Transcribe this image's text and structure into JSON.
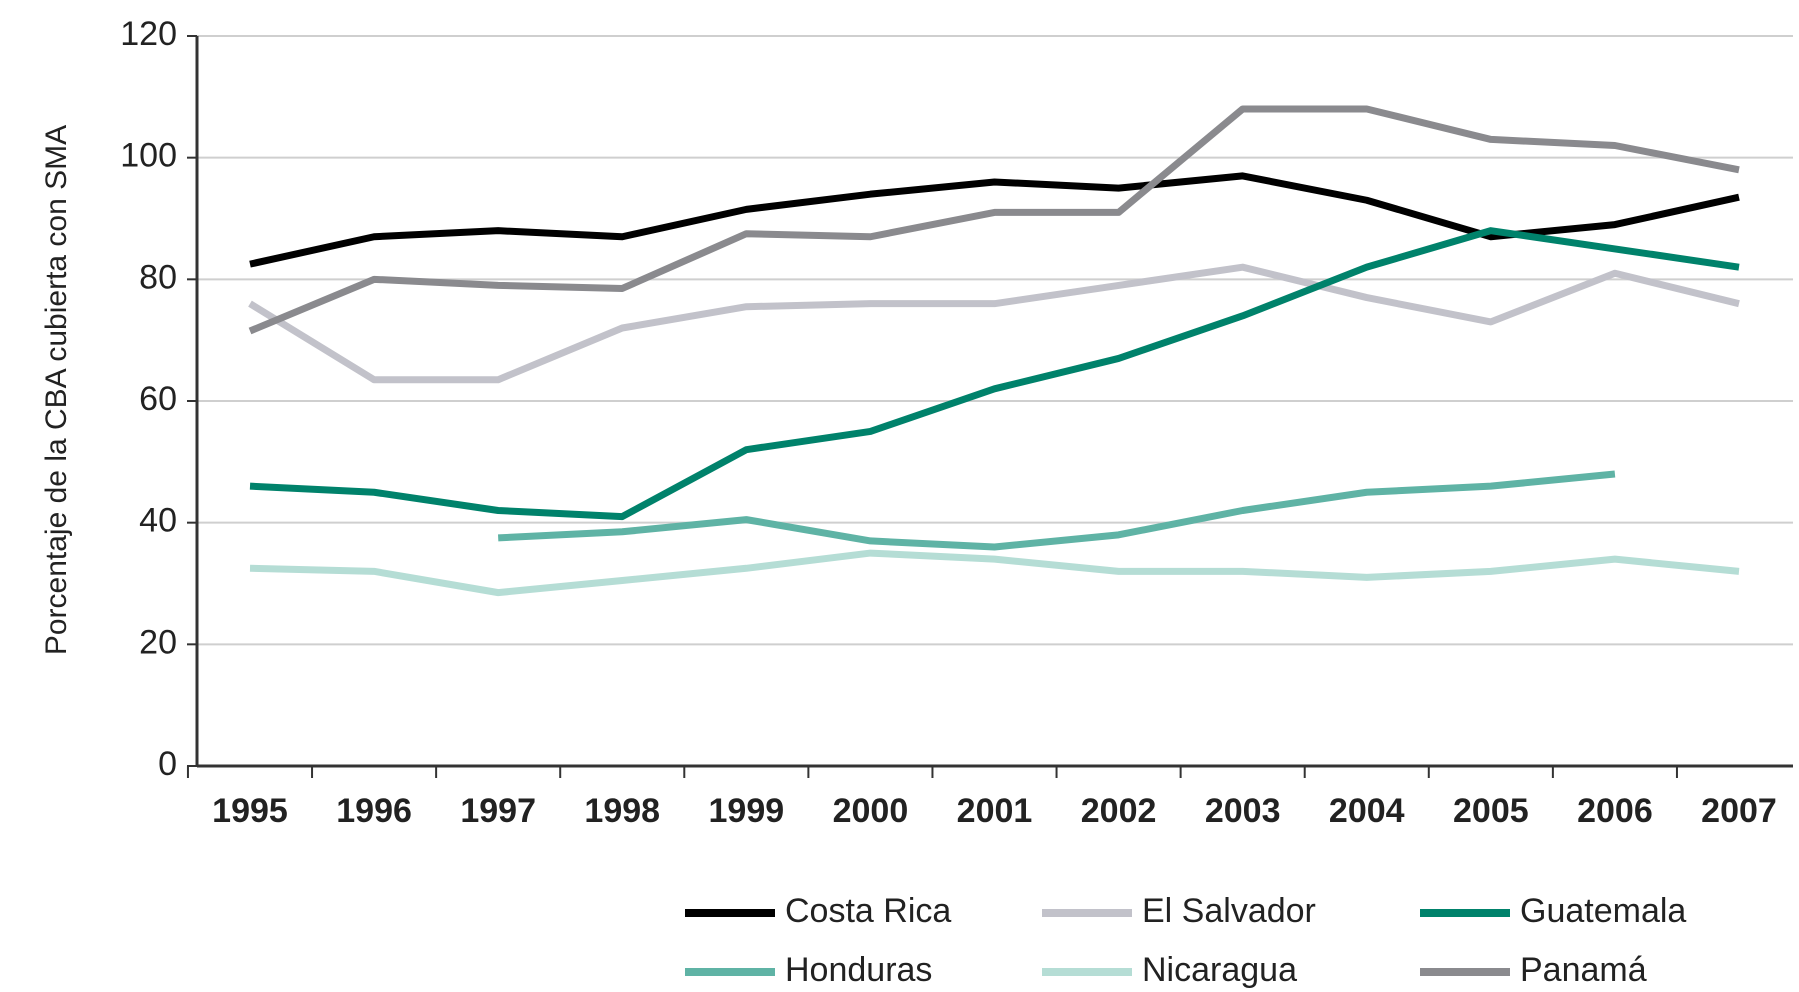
{
  "chart_data": {
    "type": "line",
    "y_label": "Porcentaje de la CBA cubierta con SMA",
    "x": [
      "1995",
      "1996",
      "1997",
      "1998",
      "1999",
      "2000",
      "2001",
      "2002",
      "2003",
      "2004",
      "2005",
      "2006",
      "2007"
    ],
    "ylim": [
      0,
      120
    ],
    "yticks": [
      0,
      20,
      40,
      60,
      80,
      100,
      120
    ],
    "grid": true,
    "series": [
      {
        "name": "Costa Rica",
        "color": "#000000",
        "values": [
          82.5,
          87,
          88,
          87,
          91.5,
          94,
          96,
          95,
          97,
          93,
          87,
          89,
          93.5
        ]
      },
      {
        "name": "El Salvador",
        "color": "#c2c2ca",
        "values": [
          76,
          63.5,
          63.5,
          72,
          75.5,
          76,
          76,
          79,
          82,
          77,
          73,
          81,
          76
        ]
      },
      {
        "name": "Guatemala",
        "color": "#00826b",
        "values": [
          46,
          45,
          42,
          41,
          52,
          55,
          62,
          67,
          74,
          82,
          88,
          85,
          82
        ]
      },
      {
        "name": "Honduras",
        "color": "#5fb3a5",
        "values": [
          null,
          null,
          37.5,
          38.5,
          40.5,
          37,
          36,
          38,
          42,
          45,
          46,
          48,
          null
        ]
      },
      {
        "name": "Nicaragua",
        "color": "#b5ddd5",
        "values": [
          32.5,
          32,
          28.5,
          30.5,
          32.5,
          35,
          34,
          32,
          32,
          31,
          32,
          34,
          32
        ]
      },
      {
        "name": "Panamá",
        "color": "#8a8a8e",
        "values": [
          71.5,
          80,
          79,
          78.5,
          87.5,
          87,
          91,
          91,
          108,
          108,
          103,
          102,
          98
        ]
      }
    ]
  }
}
